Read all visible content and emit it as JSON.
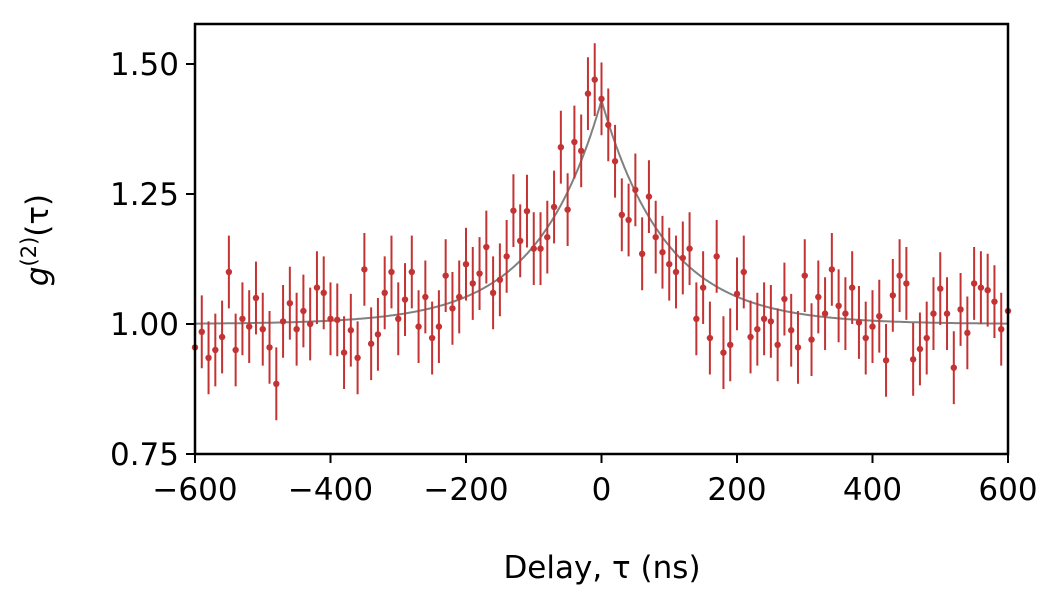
{
  "chart_data": {
    "type": "scatter",
    "title": "",
    "xlabel": "Delay, τ (ns)",
    "ylabel_main": "g",
    "ylabel_sup": "(2)",
    "ylabel_tail": "(τ)",
    "xlim": [
      -600,
      600
    ],
    "ylim": [
      0.75,
      1.58
    ],
    "xticks": [
      -600,
      -400,
      -200,
      0,
      200,
      400,
      600
    ],
    "xtick_labels": [
      "−600",
      "−400",
      "−200",
      "0",
      "200",
      "400",
      "600"
    ],
    "yticks": [
      0.75,
      1.0,
      1.25,
      1.5
    ],
    "ytick_labels": [
      "0.75",
      "1.00",
      "1.25",
      "1.50"
    ],
    "grid": false,
    "point_color": "#c43333",
    "fit_color": "#808080",
    "error_bar": 0.07,
    "fit": {
      "baseline": 1.0,
      "amplitude": 0.43,
      "tau": 95
    },
    "x_start": -600,
    "x_step": 10,
    "y": [
      0.955,
      0.985,
      0.935,
      0.95,
      0.975,
      1.1,
      0.95,
      1.01,
      0.995,
      1.05,
      0.99,
      0.955,
      0.885,
      1.005,
      1.04,
      0.99,
      1.025,
      1.0,
      1.07,
      1.06,
      1.01,
      1.008,
      0.945,
      0.988,
      0.935,
      1.105,
      0.962,
      0.98,
      1.06,
      1.1,
      1.01,
      1.047,
      1.1,
      0.995,
      1.052,
      0.973,
      0.995,
      1.093,
      1.03,
      1.052,
      1.115,
      1.078,
      1.097,
      1.148,
      1.06,
      1.085,
      1.13,
      1.218,
      1.16,
      1.217,
      1.145,
      1.145,
      1.167,
      1.225,
      1.34,
      1.22,
      1.35,
      1.333,
      1.443,
      1.47,
      1.433,
      1.383,
      1.313,
      1.21,
      1.2,
      1.258,
      1.135,
      1.245,
      1.167,
      1.138,
      1.115,
      1.1,
      1.127,
      1.145,
      1.01,
      1.07,
      0.973,
      1.13,
      0.945,
      0.96,
      1.058,
      1.1,
      0.975,
      0.99,
      1.01,
      1.005,
      0.96,
      1.048,
      0.988,
      0.955,
      1.093,
      0.97,
      1.052,
      1.02,
      1.105,
      1.035,
      1.02,
      1.07,
      1.003,
      0.973,
      0.995,
      1.015,
      0.93,
      1.055,
      1.093,
      1.078,
      0.932,
      0.952,
      0.973,
      1.02,
      1.068,
      1.02,
      0.916,
      1.028,
      0.983,
      1.078,
      1.07,
      1.065,
      1.043,
      0.99,
      1.025
    ]
  }
}
